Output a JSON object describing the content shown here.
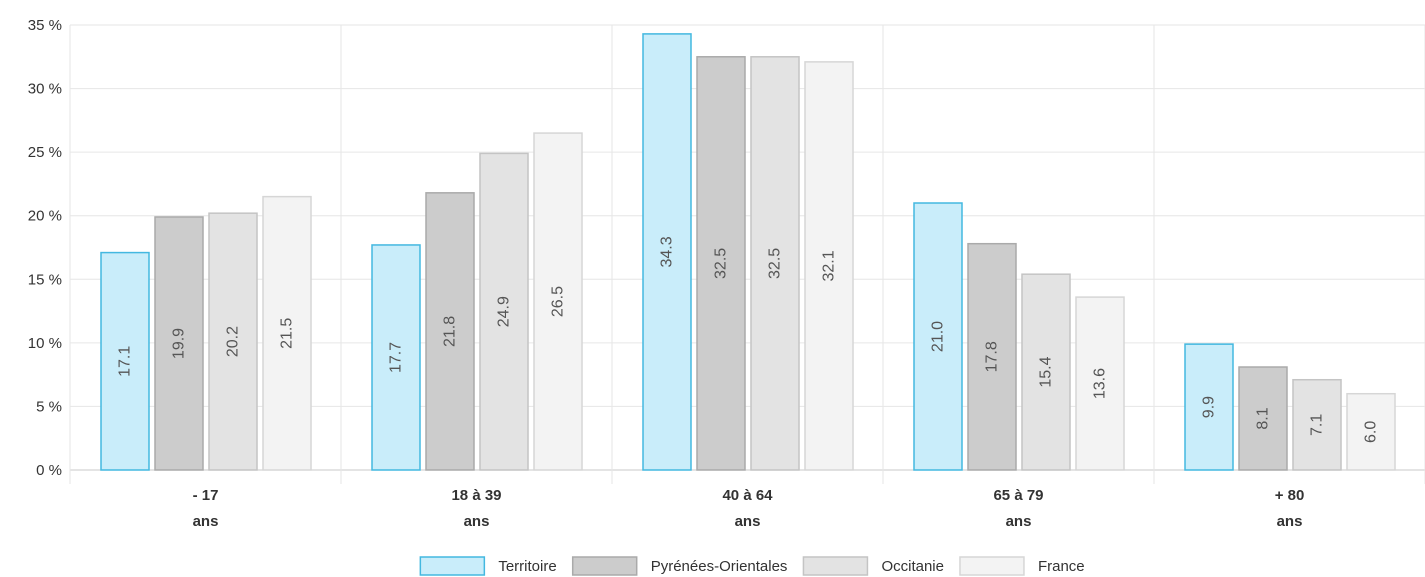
{
  "chart_data": {
    "type": "bar",
    "categories": [
      [
        "- 17",
        "ans"
      ],
      [
        "18 à 39",
        "ans"
      ],
      [
        "40 à 64",
        "ans"
      ],
      [
        "65 à 79",
        "ans"
      ],
      [
        "+ 80",
        "ans"
      ]
    ],
    "series": [
      {
        "name": "Territoire",
        "values": [
          17.1,
          17.7,
          34.3,
          21.0,
          9.9
        ],
        "labels": [
          "17.1",
          "17.7",
          "34.3",
          "21.0",
          "9.9"
        ],
        "fill": "#c9edfa",
        "stroke": "#43b8e0"
      },
      {
        "name": "Pyrénées-Orientales",
        "values": [
          19.9,
          21.8,
          32.5,
          17.8,
          8.1
        ],
        "labels": [
          "19.9",
          "21.8",
          "32.5",
          "17.8",
          "8.1"
        ],
        "fill": "#cccccc",
        "stroke": "#aaaaaa"
      },
      {
        "name": "Occitanie",
        "values": [
          20.2,
          24.9,
          32.5,
          15.4,
          7.1
        ],
        "labels": [
          "20.2",
          "24.9",
          "32.5",
          "15.4",
          "7.1"
        ],
        "fill": "#e3e3e3",
        "stroke": "#c4c4c4"
      },
      {
        "name": "France",
        "values": [
          21.5,
          26.5,
          32.1,
          13.6,
          6.0
        ],
        "labels": [
          "21.5",
          "26.5",
          "32.1",
          "13.6",
          "6.0"
        ],
        "fill": "#f3f3f3",
        "stroke": "#d6d6d6"
      }
    ],
    "yticks": [
      0,
      5,
      10,
      15,
      20,
      25,
      30,
      35
    ],
    "ytick_labels": [
      "0 %",
      "5 %",
      "10 %",
      "15 %",
      "20 %",
      "25 %",
      "30 %",
      "35 %"
    ],
    "ylim": [
      0,
      35
    ],
    "grid": true,
    "legend_position": "bottom-center"
  }
}
